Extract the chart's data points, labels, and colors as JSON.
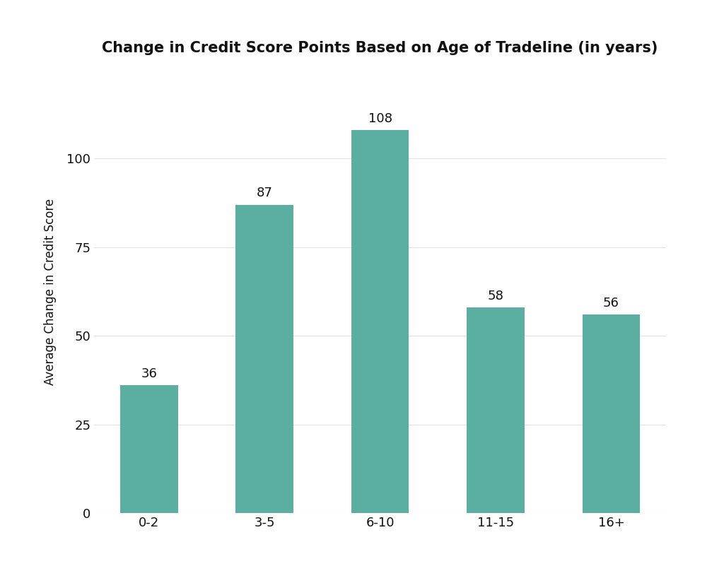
{
  "categories": [
    "0-2",
    "3-5",
    "6-10",
    "11-15",
    "16+"
  ],
  "values": [
    36,
    87,
    108,
    58,
    56
  ],
  "bar_color": "#5aafa0",
  "title": "Change in Credit Score Points Based on Age of Tradeline (in years)",
  "ylabel": "Average Change in Credit Score",
  "xlabel": "",
  "ylim": [
    0,
    125
  ],
  "yticks": [
    0,
    25,
    50,
    75,
    100
  ],
  "title_fontsize": 15,
  "label_fontsize": 12,
  "tick_fontsize": 13,
  "value_fontsize": 13,
  "background_color": "#ffffff",
  "bar_width": 0.5,
  "grid_color": "#d0d0d0",
  "grid_alpha": 0.6,
  "grid_linewidth": 0.8
}
